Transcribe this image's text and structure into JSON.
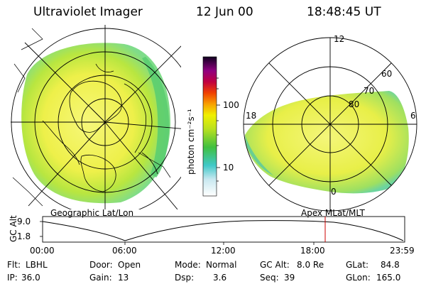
{
  "header": {
    "title": "Ultraviolet Imager",
    "date": "12 Jun 00",
    "time": "18:48:45 UT"
  },
  "colorbar": {
    "unit_label": "photon cm⁻²s⁻¹",
    "ticks": [
      "100",
      "10"
    ]
  },
  "polar_plot": {
    "mlt_labels": [
      "12",
      "18",
      "6",
      "0"
    ],
    "mlat_labels": [
      "60",
      "70",
      "80"
    ]
  },
  "panel_titles": {
    "left": "Geographic Lat/Lon",
    "right": "Apex MLat/MLT"
  },
  "altitude_strip": {
    "axis_label": "GC Alt",
    "y_ticks": [
      "9.0",
      "1.8"
    ],
    "x_ticks": [
      "00:00",
      "06:00",
      "12:00",
      "18:00",
      "23:59"
    ],
    "current_time_marker": "18:48"
  },
  "footer": {
    "row1": {
      "flt_label": "Flt:",
      "flt_value": "LBHL",
      "door_label": "Door:",
      "door_value": "Open",
      "mode_label": "Mode:",
      "mode_value": "Normal",
      "gcalt_label": "GC Alt:",
      "gcalt_value": "8.0 Re",
      "glat_label": "GLat:",
      "glat_value": "84.8"
    },
    "row2": {
      "ip_label": "IP:",
      "ip_value": "36.0",
      "gain_label": "Gain:",
      "gain_value": "13",
      "dsp_label": "Dsp:",
      "dsp_value": "3.6",
      "seq_label": "Seq:",
      "seq_value": "39",
      "glon_label": "GLon:",
      "glon_value": "165.0"
    }
  },
  "colors": {
    "background": "#ffffff",
    "emission_low": "#c8e6f0",
    "emission_mid": "#f0f040",
    "emission_green": "#60d060",
    "marker_red": "#cc0000"
  }
}
